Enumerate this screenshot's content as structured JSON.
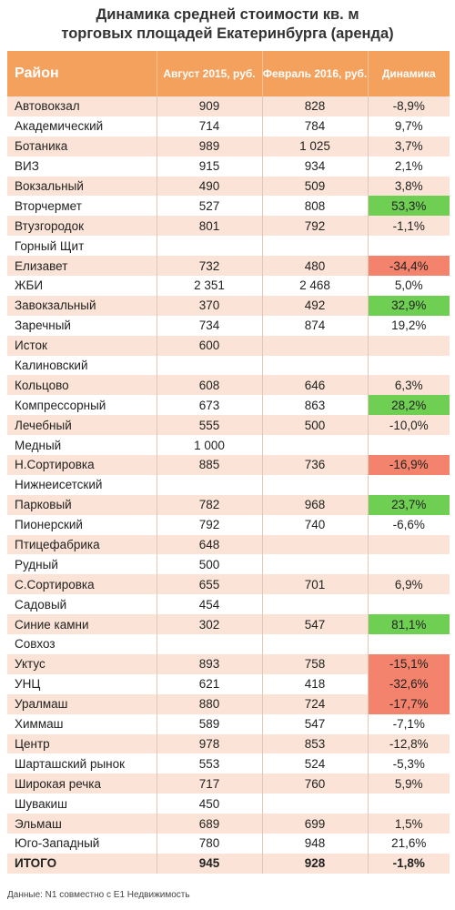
{
  "title": [
    "Динамика средней стоимости кв. м",
    "торговых площадей Екатеринбурга (аренда)"
  ],
  "table": {
    "header": [
      "Район",
      "Август 2015, руб.",
      "Февраль 2016, руб.",
      "Динамика"
    ],
    "rows": [
      {
        "cells": [
          "Автовокзал",
          "909",
          "828",
          "-8,9%"
        ]
      },
      {
        "cells": [
          "Академический",
          "714",
          "784",
          "9,7%"
        ]
      },
      {
        "cells": [
          "Ботаника",
          "989",
          "1 025",
          "3,7%"
        ]
      },
      {
        "cells": [
          "ВИЗ",
          "915",
          "934",
          "2,1%"
        ]
      },
      {
        "cells": [
          "Вокзальный",
          "490",
          "509",
          "3,8%"
        ]
      },
      {
        "cells": [
          "Вторчермет",
          "527",
          "808",
          "53,3%"
        ],
        "highlight": "#6fcf52"
      },
      {
        "cells": [
          "Втузгородок",
          "801",
          "792",
          "-1,1%"
        ]
      },
      {
        "cells": [
          "Горный Щит",
          null,
          null,
          null
        ]
      },
      {
        "cells": [
          "Елизавет",
          "732",
          "480",
          "-34,4%"
        ],
        "highlight": "#f3836c"
      },
      {
        "cells": [
          "ЖБИ",
          "2 351",
          "2 468",
          "5,0%"
        ]
      },
      {
        "cells": [
          "Завокзальный",
          "370",
          "492",
          "32,9%"
        ],
        "highlight": "#6fcf52"
      },
      {
        "cells": [
          "Заречный",
          "734",
          "874",
          "19,2%"
        ]
      },
      {
        "cells": [
          "Исток",
          "600",
          null,
          null
        ]
      },
      {
        "cells": [
          "Калиновский",
          null,
          null,
          null
        ]
      },
      {
        "cells": [
          "Кольцово",
          "608",
          "646",
          "6,3%"
        ]
      },
      {
        "cells": [
          "Компрессорный",
          "673",
          "863",
          "28,2%"
        ],
        "highlight": "#6fcf52"
      },
      {
        "cells": [
          "Лечебный",
          "555",
          "500",
          "-10,0%"
        ]
      },
      {
        "cells": [
          "Медный",
          "1 000",
          null,
          null
        ]
      },
      {
        "cells": [
          "Н.Сортировка",
          "885",
          "736",
          "-16,9%"
        ],
        "highlight": "#f3836c"
      },
      {
        "cells": [
          "Нижнеисетский",
          null,
          null,
          null
        ]
      },
      {
        "cells": [
          "Парковый",
          "782",
          "968",
          "23,7%"
        ],
        "highlight": "#6fcf52"
      },
      {
        "cells": [
          "Пионерский",
          "792",
          "740",
          "-6,6%"
        ]
      },
      {
        "cells": [
          "Птицефабрика",
          "648",
          null,
          null
        ]
      },
      {
        "cells": [
          "Рудный",
          "500",
          null,
          null
        ]
      },
      {
        "cells": [
          "С.Сортировка",
          "655",
          "701",
          "6,9%"
        ]
      },
      {
        "cells": [
          "Садовый",
          "454",
          null,
          null
        ]
      },
      {
        "cells": [
          "Синие камни",
          "302",
          "547",
          "81,1%"
        ],
        "highlight": "#6fcf52"
      },
      {
        "cells": [
          "Совхоз",
          null,
          null,
          null
        ]
      },
      {
        "cells": [
          "Уктус",
          "893",
          "758",
          "-15,1%"
        ],
        "highlight": "#f3836c"
      },
      {
        "cells": [
          "УНЦ",
          "621",
          "418",
          "-32,6%"
        ],
        "highlight": "#f3836c"
      },
      {
        "cells": [
          "Уралмаш",
          "880",
          "724",
          "-17,7%"
        ],
        "highlight": "#f3836c"
      },
      {
        "cells": [
          "Химмаш",
          "589",
          "547",
          "-7,1%"
        ]
      },
      {
        "cells": [
          "Центр",
          "978",
          "853",
          "-12,8%"
        ]
      },
      {
        "cells": [
          "Шарташский рынок",
          "553",
          "524",
          "-5,3%"
        ]
      },
      {
        "cells": [
          "Широкая речка",
          "717",
          "760",
          "5,9%"
        ]
      },
      {
        "cells": [
          "Шувакиш",
          "450",
          null,
          null
        ]
      },
      {
        "cells": [
          "Эльмаш",
          "689",
          "699",
          "1,5%"
        ]
      },
      {
        "cells": [
          "Юго-Западный",
          "780",
          "948",
          "21,6%"
        ]
      }
    ],
    "total": [
      "ИТОГО",
      "945",
      "928",
      "-1,8%"
    ]
  },
  "source": "Данные: N1 совместно с E1 Недвижимость"
}
